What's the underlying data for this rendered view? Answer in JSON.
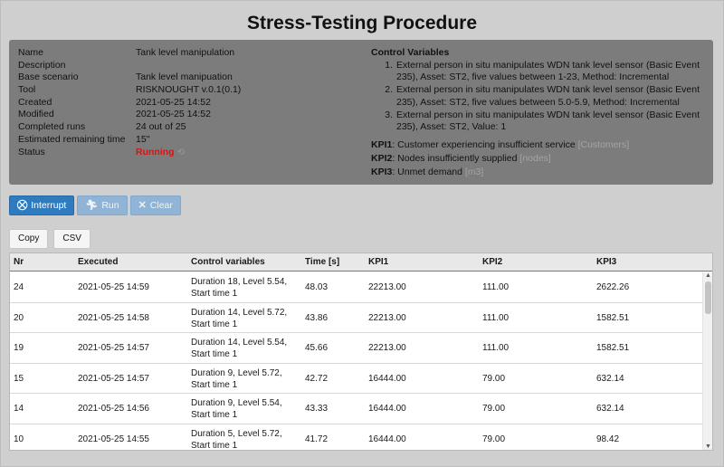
{
  "page": {
    "title": "Stress-Testing Procedure"
  },
  "info": {
    "fields": [
      {
        "label": "Name",
        "value": "Tank level manipulation"
      },
      {
        "label": "Description",
        "value": ""
      },
      {
        "label": "Base scenario",
        "value": "Tank level manipuation"
      },
      {
        "label": "Tool",
        "value": "RISKNOUGHT v.0.1(0.1)"
      },
      {
        "label": "Created",
        "value": "2021-05-25 14:52"
      },
      {
        "label": "Modified",
        "value": "2021-05-25 14:52"
      },
      {
        "label": "Completed runs",
        "value": "24 out of 25"
      },
      {
        "label": "Estimated remaining time",
        "value": "15''"
      },
      {
        "label": "Status",
        "value": "Running"
      }
    ],
    "status_color": "#d61515",
    "status_icon": "refresh-icon"
  },
  "control_variables": {
    "title": "Control Variables",
    "items": [
      {
        "num": "1.",
        "text": "External person in situ manipulates WDN tank level sensor (Basic Event 235), Asset: ST2, five values between 1-23, Method: Incremental"
      },
      {
        "num": "2.",
        "text": "External person in situ manipulates WDN tank level sensor (Basic Event 235), Asset: ST2, five values between 5.0-5.9, Method: Incremental"
      },
      {
        "num": "3.",
        "text": "External person in situ manipulates WDN tank level sensor (Basic Event 235), Asset: ST2, Value: 1"
      }
    ]
  },
  "kpis": [
    {
      "key": "KPI1",
      "text": ": Customer experiencing insufficient service ",
      "unit": "[Customers]"
    },
    {
      "key": "KPI2",
      "text": ": Nodes insufficiently supplied ",
      "unit": "[nodes]"
    },
    {
      "key": "KPI3",
      "text": ": Unmet demand ",
      "unit": "[m3]"
    }
  ],
  "toolbar": {
    "interrupt_label": "Interrupt",
    "run_label": "Run",
    "clear_label": "Clear",
    "primary_color": "#2f7bbf"
  },
  "export": {
    "copy_label": "Copy",
    "csv_label": "CSV"
  },
  "table": {
    "headers": [
      "Nr",
      "Executed",
      "Control variables",
      "Time [s]",
      "KPI1",
      "KPI2",
      "KPI3"
    ],
    "rows": [
      [
        "24",
        "2021-05-25 14:59",
        "Duration 18, Level 5.54, Start time 1",
        "48.03",
        "22213.00",
        "111.00",
        "2622.26"
      ],
      [
        "20",
        "2021-05-25 14:58",
        "Duration 14, Level 5.72, Start time 1",
        "43.86",
        "22213.00",
        "111.00",
        "1582.51"
      ],
      [
        "19",
        "2021-05-25 14:57",
        "Duration 14, Level 5.54, Start time 1",
        "45.66",
        "22213.00",
        "111.00",
        "1582.51"
      ],
      [
        "15",
        "2021-05-25 14:57",
        "Duration 9, Level 5.72, Start time 1",
        "42.72",
        "16444.00",
        "79.00",
        "632.14"
      ],
      [
        "14",
        "2021-05-25 14:56",
        "Duration 9, Level 5.54, Start time 1",
        "43.33",
        "16444.00",
        "79.00",
        "632.14"
      ],
      [
        "10",
        "2021-05-25 14:55",
        "Duration 5, Level 5.72, Start time 1",
        "41.72",
        "16444.00",
        "79.00",
        "98.42"
      ]
    ]
  }
}
